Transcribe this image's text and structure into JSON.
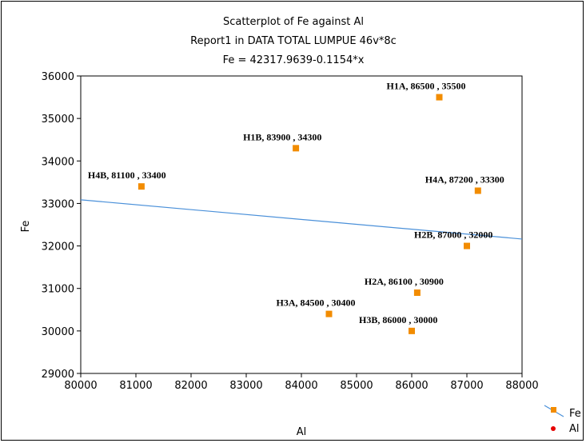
{
  "chart_data": {
    "type": "scatter",
    "title_lines": [
      "Scatterplot of Fe against Al",
      "Report1 in DATA TOTAL LUMPUE 46v*8c",
      "Fe = 42317.9639-0.1154*x"
    ],
    "xlabel": "Al",
    "ylabel": "Fe",
    "xlim": [
      80000,
      88000
    ],
    "ylim": [
      29000,
      36000
    ],
    "xticks": [
      80000,
      81000,
      82000,
      83000,
      84000,
      85000,
      86000,
      87000,
      88000
    ],
    "yticks": [
      29000,
      30000,
      31000,
      32000,
      33000,
      34000,
      35000,
      36000
    ],
    "grid": false,
    "marker_color": "#f28c00",
    "line_color": "#4a90d9",
    "regression": {
      "intercept": 42317.9639,
      "slope": -0.1154
    },
    "points": [
      {
        "label": "H1A, 86500 , 35500",
        "x": 86500,
        "y": 35500,
        "anchor": "left"
      },
      {
        "label": "H1B, 83900 , 34300",
        "x": 83900,
        "y": 34300,
        "anchor": "left"
      },
      {
        "label": "H4B, 81100 , 33400",
        "x": 81100,
        "y": 33400,
        "anchor": "right"
      },
      {
        "label": "H4A, 87200 , 33300",
        "x": 87200,
        "y": 33300,
        "anchor": "left"
      },
      {
        "label": "H2B, 87000 , 32000",
        "x": 87000,
        "y": 32000,
        "anchor": "left"
      },
      {
        "label": "H2A, 86100 , 30900",
        "x": 86100,
        "y": 30900,
        "anchor": "left"
      },
      {
        "label": "H3A, 84500 , 30400",
        "x": 84500,
        "y": 30400,
        "anchor": "left"
      },
      {
        "label": "H3B, 86000 , 30000",
        "x": 86000,
        "y": 30000,
        "anchor": "left"
      }
    ],
    "legend": {
      "placement": "bottom-right",
      "entries": [
        {
          "name": "Fe",
          "marker": "square-with-line",
          "color": "#f28c00"
        },
        {
          "name": "Al",
          "marker": "dot",
          "color": "#e60000"
        }
      ]
    }
  }
}
